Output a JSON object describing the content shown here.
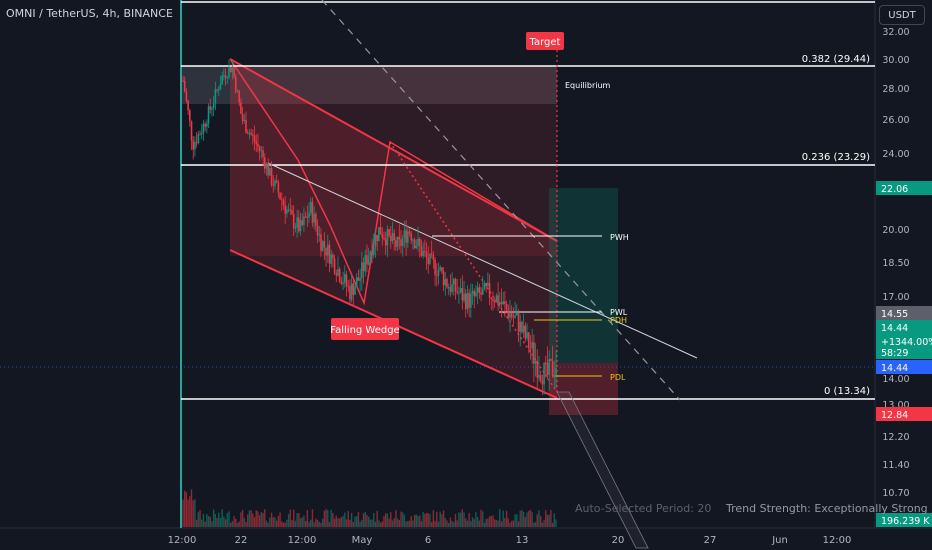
{
  "header": {
    "symbol_title": "OMNI / TetherUS, 4h, BINANCE",
    "currency_button": "USDT"
  },
  "indicator": {
    "period_text": "Auto-Selected Period: 20",
    "strength_text": "Trend Strength: Exceptionally Strong"
  },
  "price_axis": {
    "ticks": [
      "32.00",
      "30.00",
      "28.00",
      "26.00",
      "24.00",
      "22.00",
      "20.00",
      "18.50",
      "17.00",
      "16.00",
      "15.00",
      "14.00",
      "13.00",
      "12.20",
      "11.40",
      "10.70"
    ],
    "badges": [
      {
        "text": "22.06",
        "color": "#089981"
      },
      {
        "text": "14.55",
        "color": "#5d606b"
      },
      {
        "text": "14.44",
        "color": "#089981"
      },
      {
        "text": "+1344.00%",
        "color": "#089981"
      },
      {
        "text": "58:29",
        "color": "#089981"
      },
      {
        "text": "14.44",
        "color": "#2962ff"
      },
      {
        "text": "12.84",
        "color": "#f23645"
      },
      {
        "text": "196.239 K",
        "color": "#089981"
      }
    ]
  },
  "time_axis": {
    "labels": [
      "12:00",
      "22",
      "12:00",
      "May",
      "6",
      "13",
      "20",
      "27",
      "Jun",
      "12:00"
    ]
  },
  "annotations": {
    "target": "Target",
    "equilibrium": "Equilibrium",
    "falling_wedge": "Falling Wedge",
    "fib_382": "0.382 (29.44)",
    "fib_236": "0.236 (23.29)",
    "fib_0": "0 (13.34)",
    "pwh": "PWH",
    "pwl": "PWL",
    "pdh": "PDH",
    "pdl": "PDL"
  },
  "colors": {
    "up": "#089981",
    "down": "#f23645",
    "background": "#131722",
    "pattern": "#f23645",
    "level": "#ffffff",
    "pdh": "#f0c419",
    "long_zone": "#089981"
  },
  "chart_data": {
    "type": "candlestick",
    "title": "OMNI / TetherUS, 4h, BINANCE",
    "ylim": [
      10.4,
      33
    ],
    "x_tick_labels": [
      "12:00",
      "22",
      "12:00",
      "May",
      "6",
      "13",
      "20",
      "27",
      "Jun",
      "12:00"
    ],
    "y_tick_labels": [
      "32.00",
      "30.00",
      "28.00",
      "26.00",
      "24.00",
      "22.00",
      "20.00",
      "18.50",
      "17.00",
      "16.00",
      "15.00",
      "14.00",
      "13.00",
      "12.20",
      "11.40",
      "10.70"
    ],
    "fib_levels": [
      {
        "label": "0.382 (29.44)",
        "value": 29.44
      },
      {
        "label": "0.236 (23.29)",
        "value": 23.29
      },
      {
        "label": "0 (13.34)",
        "value": 13.34
      }
    ],
    "marked_prices": {
      "last": 14.44,
      "change_pct": "+1344.00%",
      "stop": 12.84,
      "target_zone_top": 22.06,
      "prev_close": 14.55,
      "volume": "196.239 K"
    },
    "close_series_approx": [
      28.5,
      24.5,
      25.5,
      27.0,
      28.8,
      29.5,
      26.0,
      25.0,
      24.0,
      22.5,
      21.5,
      20.5,
      20.0,
      21.0,
      19.5,
      18.8,
      18.0,
      17.2,
      17.8,
      19.0,
      20.0,
      19.5,
      19.2,
      20.0,
      19.2,
      18.5,
      18.2,
      17.5,
      17.2,
      16.8,
      17.0,
      17.2,
      16.9,
      16.4,
      16.0,
      15.2,
      14.5,
      14.0,
      14.44
    ],
    "grid": false
  }
}
